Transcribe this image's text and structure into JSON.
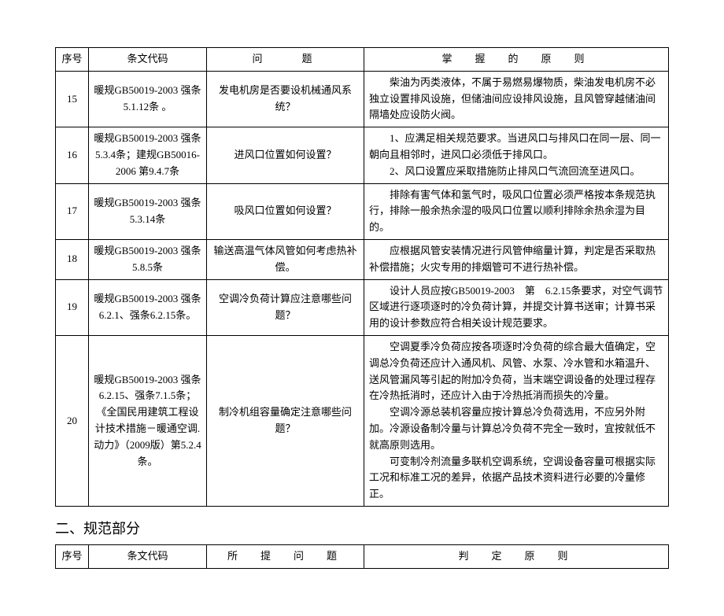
{
  "table1": {
    "headers": {
      "seq": "序号",
      "code": "条文代码",
      "question": "问　　题",
      "principle": "掌　握　的　原　则"
    },
    "rows": [
      {
        "seq": "15",
        "code": "暖规GB50019-2003 强条5.1.12条 。",
        "question": "发电机房是否要设机械通风系统？",
        "principle": "　　柴油为丙类液体，不属于易燃易爆物质，柴油发电机房不必独立设置排风设施，但储油间应设排风设施，且风管穿越储油间隔墙处应设防火阀。"
      },
      {
        "seq": "16",
        "code": "暖规GB50019-2003 强条5.3.4条；建规GB50016-2006 第9.4.7条",
        "question": "进风口位置如何设置？",
        "principle": "　　1、应满足相关规范要求。当进风口与排风口在同一层、同一朝向且相邻时，进风口必须低于排风口。\n　　2、风口设置应采取措施防止排风口气流回流至进风口。"
      },
      {
        "seq": "17",
        "code": "暖规GB50019-2003 强条5.3.14条",
        "question": "吸风口位置如何设置？",
        "principle": "　　排除有害气体和氢气时，吸风口位置必须严格按本条规范执行，排除一般余热余湿的吸风口位置以顺利排除余热余湿为目的。"
      },
      {
        "seq": "18",
        "code": "暖规GB50019-2003 强条5.8.5条",
        "question": "输送高温气体风管如何考虑热补偿。",
        "principle": "　　应根据风管安装情况进行风管伸缩量计算，判定是否采取热补偿措施；火灾专用的排烟管可不进行热补偿。"
      },
      {
        "seq": "19",
        "code": "暖规GB50019-2003 强条6.2.1、强条6.2.15条。",
        "question": "空调冷负荷计算应注意哪些问题？",
        "principle": "　　设计人员应按GB50019-2003　第　6.2.15条要求，对空气调节区域进行逐项逐时的冷负荷计算，并提交计算书送审；计算书采用的设计参数应符合相关设计规范要求。"
      },
      {
        "seq": "20",
        "code": "暖规GB50019-2003 强条6.2.15、强条7.1.5条；《全国民用建筑工程设计技术措施－暖通空调.动力》（2009版）第5.2.4条。",
        "question": "制冷机组容量确定注意哪些问题？",
        "principle": "　　空调夏季冷负荷应按各项逐时冷负荷的综合最大值确定，空调总冷负荷还应计入通风机、风管、水泵、冷水管和水箱温升、送风管漏风等引起的附加冷负荷，当末端空调设备的处理过程存在冷热抵消时，还应计入由于冷热抵消而损失的冷量。\n　　空调冷源总装机容量应按计算总冷负荷选用，不应另外附加。冷源设备制冷量与计算总冷负荷不完全一致时，宜按就低不就高原则选用。\n　　可变制冷剂流量多联机空调系统，空调设备容量可根据实际工况和标准工况的差异，依据产品技术资料进行必要的冷量修正。"
      }
    ]
  },
  "section2_title": "二、规范部分",
  "table2": {
    "headers": {
      "seq": "序号",
      "code": "条文代码",
      "question": "所　提　问　题",
      "principle": "判　定　原　则"
    }
  }
}
